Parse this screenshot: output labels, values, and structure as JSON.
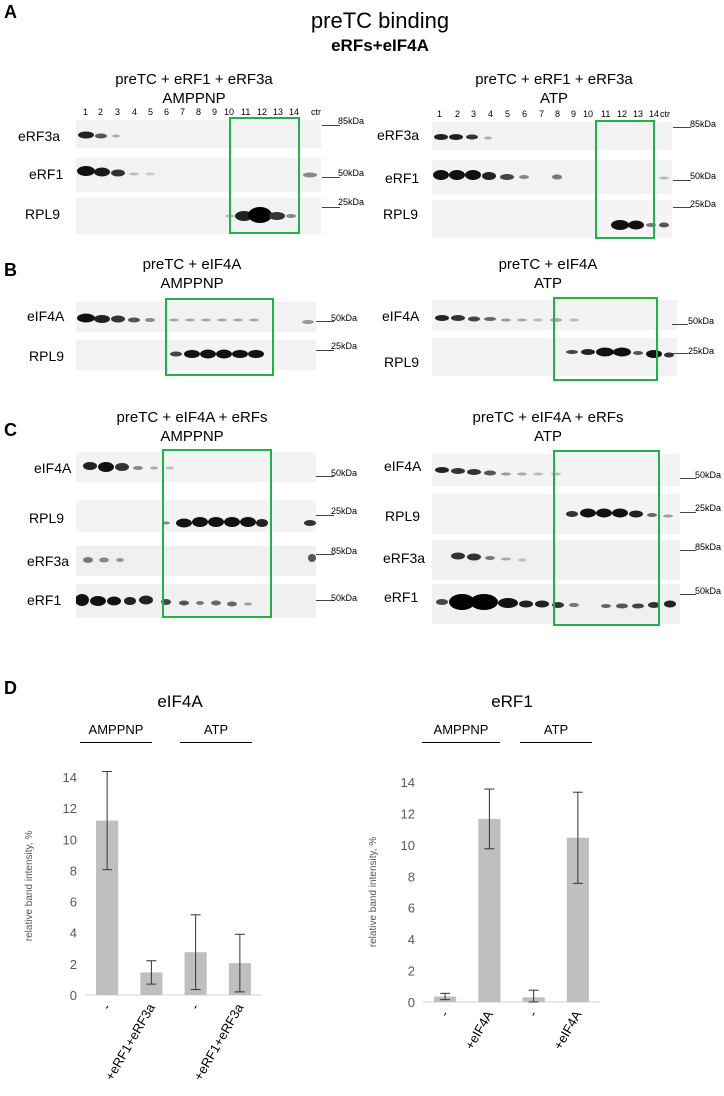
{
  "figure": {
    "title": "preTC binding",
    "subtitle": "eRFs+eIF4A"
  },
  "panels": {
    "A": {
      "label": "A",
      "left": {
        "title_line1": "preTC + eRF1 + eRF3a",
        "title_line2": "AMPPNP",
        "lanes": [
          "1",
          "2",
          "3",
          "4",
          "5",
          "6",
          "7",
          "8",
          "9",
          "10",
          "11",
          "12",
          "13",
          "14",
          "ctr"
        ],
        "blots": [
          {
            "name": "eRF3a",
            "mw": "85kDa"
          },
          {
            "name": "eRF1",
            "mw": "50kDa"
          },
          {
            "name": "RPL9",
            "mw": "25kDa"
          }
        ]
      },
      "right": {
        "title_line1": "preTC + eRF1 + eRF3a",
        "title_line2": "ATP",
        "lanes": [
          "1",
          "2",
          "3",
          "4",
          "5",
          "6",
          "7",
          "8",
          "9",
          "10",
          "11",
          "12",
          "13",
          "14",
          "ctr"
        ],
        "blots": [
          {
            "name": "eRF3a",
            "mw": "85kDa"
          },
          {
            "name": "eRF1",
            "mw": "50kDa"
          },
          {
            "name": "RPL9",
            "mw": "25kDa"
          }
        ]
      }
    },
    "B": {
      "label": "B",
      "left": {
        "title_line1": "preTC + eIF4A",
        "title_line2": "AMPPNP",
        "blots": [
          {
            "name": "eIF4A",
            "mw": "50kDa"
          },
          {
            "name": "RPL9",
            "mw": "25kDa"
          }
        ]
      },
      "right": {
        "title_line1": "preTC + eIF4A",
        "title_line2": "ATP",
        "blots": [
          {
            "name": "eIF4A",
            "mw": "50kDa"
          },
          {
            "name": "RPL9",
            "mw": "25kDa"
          }
        ]
      }
    },
    "C": {
      "label": "C",
      "left": {
        "title_line1": "preTC + eIF4A + eRFs",
        "title_line2": "AMPPNP",
        "blots": [
          {
            "name": "eIF4A",
            "mw": "50kDa"
          },
          {
            "name": "RPL9",
            "mw": "25kDa"
          },
          {
            "name": "eRF3a",
            "mw": "85kDa"
          },
          {
            "name": "eRF1",
            "mw": "50kDa"
          }
        ]
      },
      "right": {
        "title_line1": "preTC + eIF4A + eRFs",
        "title_line2": "ATP",
        "blots": [
          {
            "name": "eIF4A",
            "mw": "50kDa"
          },
          {
            "name": "RPL9",
            "mw": "25kDa"
          },
          {
            "name": "eRF3a",
            "mw": "85kDa"
          },
          {
            "name": "eRF1",
            "mw": "50kDa"
          }
        ]
      }
    },
    "D": {
      "label": "D",
      "left": {
        "chart_title": "eIF4A",
        "cond1": "AMPPNP",
        "cond2": "ATP"
      },
      "right": {
        "chart_title": "eRF1",
        "cond1": "AMPPNP",
        "cond2": "ATP"
      }
    }
  },
  "chart_data": [
    {
      "type": "bar",
      "title": "eIF4A",
      "categories": [
        "-",
        "+eRF1+eRF3a",
        "-",
        "+eRF1+eRF3a"
      ],
      "groups": [
        "AMPPNP",
        "AMPPNP",
        "ATP",
        "ATP"
      ],
      "values": [
        11.2,
        1.45,
        2.75,
        2.05
      ],
      "errors": [
        3.15,
        0.75,
        2.4,
        1.85
      ],
      "ylabel": "relative band intensity, %",
      "ylim": [
        0,
        14
      ],
      "yticks": [
        "0",
        "2",
        "4",
        "6",
        "8",
        "10",
        "12",
        "14"
      ],
      "bar_color": "#bfbfbf"
    },
    {
      "type": "bar",
      "title": "eRF1",
      "categories": [
        "-",
        "+eIF4A",
        "-",
        "+eIF4A"
      ],
      "groups": [
        "AMPPNP",
        "AMPPNP",
        "ATP",
        "ATP"
      ],
      "values": [
        0.35,
        11.65,
        0.3,
        10.45
      ],
      "errors": [
        0.2,
        1.9,
        0.45,
        2.9
      ],
      "ylabel": "relative band intensity, %",
      "ylim": [
        0,
        14
      ],
      "yticks": [
        "0",
        "2",
        "4",
        "6",
        "8",
        "10",
        "12",
        "14"
      ],
      "bar_color": "#bfbfbf"
    }
  ]
}
